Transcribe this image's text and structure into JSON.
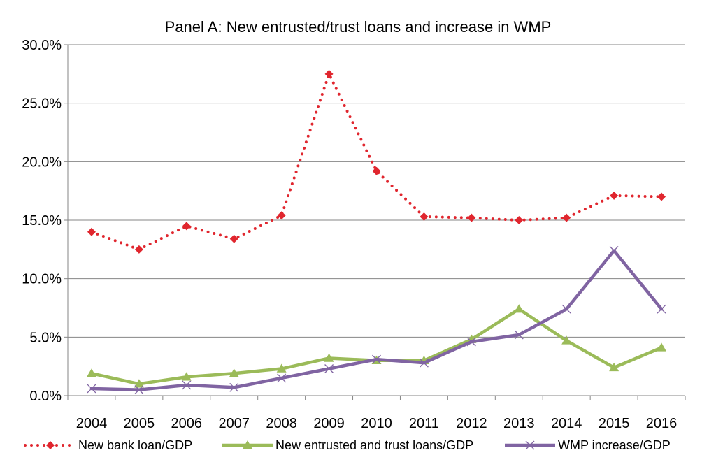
{
  "chart_data": {
    "type": "line",
    "title": "Panel A: New entrusted/trust loans and increase in WMP",
    "xlabel": "",
    "ylabel": "",
    "categories": [
      "2004",
      "2005",
      "2006",
      "2007",
      "2008",
      "2009",
      "2010",
      "2011",
      "2012",
      "2013",
      "2014",
      "2015",
      "2016"
    ],
    "ylim": [
      0,
      30
    ],
    "y_ticks": [
      0,
      5,
      10,
      15,
      20,
      25,
      30
    ],
    "y_tick_labels": [
      "0.0%",
      "5.0%",
      "10.0%",
      "15.0%",
      "20.0%",
      "25.0%",
      "30.0%"
    ],
    "grid": "horizontal",
    "legend_position": "bottom",
    "series": [
      {
        "name": "New bank loan/GDP",
        "values": [
          14.0,
          12.5,
          14.5,
          13.4,
          15.4,
          27.5,
          19.2,
          15.3,
          15.2,
          15.0,
          15.2,
          17.1,
          17.0
        ],
        "color": "#e0262e",
        "marker": "diamond",
        "line_style": "dotted"
      },
      {
        "name": "New entrusted and trust loans/GDP",
        "values": [
          1.9,
          1.0,
          1.6,
          1.9,
          2.3,
          3.2,
          3.0,
          3.0,
          4.8,
          7.4,
          4.7,
          2.4,
          4.1
        ],
        "color": "#9bbb59",
        "marker": "triangle",
        "line_style": "solid"
      },
      {
        "name": "WMP increase/GDP",
        "values": [
          0.6,
          0.5,
          0.9,
          0.7,
          1.5,
          2.3,
          3.1,
          2.8,
          4.6,
          5.2,
          7.4,
          12.4,
          7.4
        ],
        "color": "#8064a2",
        "marker": "x",
        "line_style": "solid"
      }
    ]
  }
}
